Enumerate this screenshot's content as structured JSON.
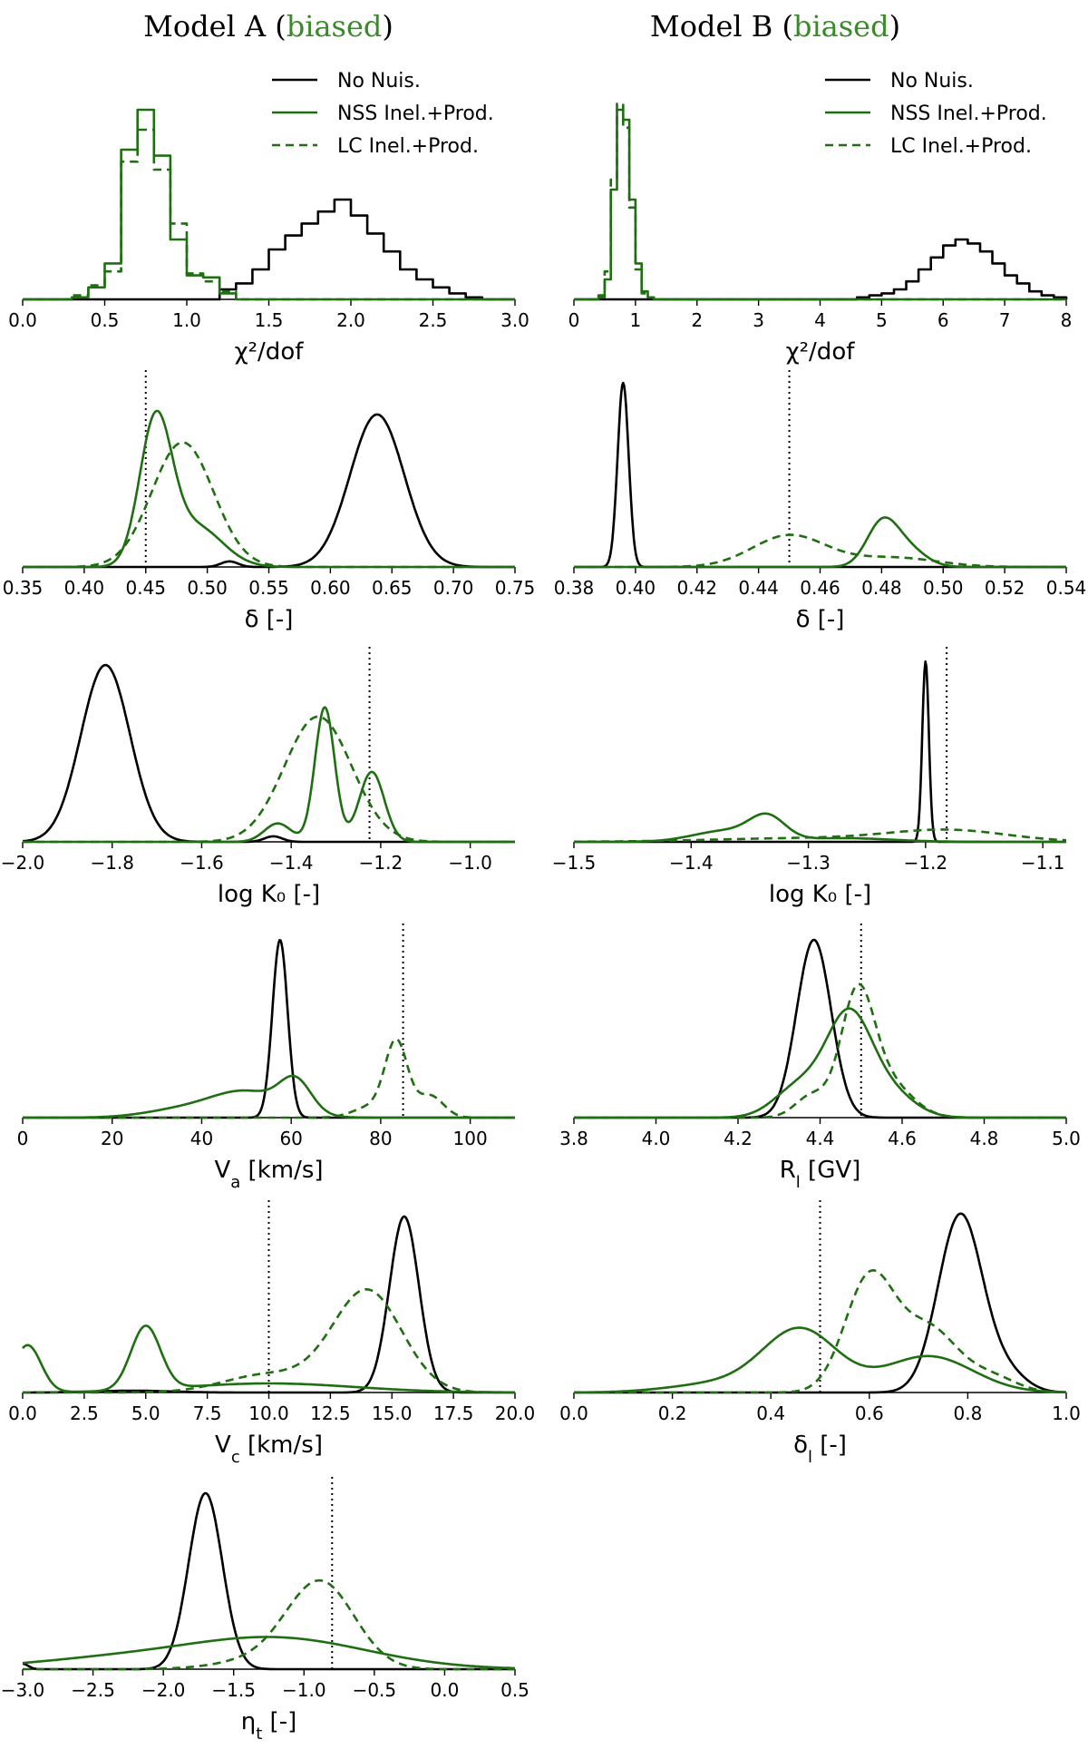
{
  "colors": {
    "black": "#000000",
    "green": "#1f6e12",
    "biased": "#3a8a2a"
  },
  "columns": [
    {
      "title_prefix": "Model A (",
      "title_colored": "biased",
      "title_suffix": ")"
    },
    {
      "title_prefix": "Model B (",
      "title_colored": "biased",
      "title_suffix": ")"
    }
  ],
  "legend": [
    "No Nuis.",
    "NSS Inel.+Prod.",
    "LC Inel.+Prod."
  ],
  "chart_data": [
    {
      "id": "A-chi2",
      "type": "step-histogram",
      "col": 0,
      "row": 0,
      "xlabel": "χ²/dof",
      "xlim": [
        0,
        3.0
      ],
      "ylim": [
        0,
        1.0
      ],
      "ticks": [
        0,
        0.5,
        1.0,
        1.5,
        2.0,
        2.5,
        3.0
      ],
      "tick_labels": [
        "0.0",
        "0.5",
        "1.0",
        "1.5",
        "2.0",
        "2.5",
        "3.0"
      ],
      "legend": true,
      "series": [
        {
          "name": "No Nuis.",
          "style": "black-solid",
          "bins": [
            1.2,
            1.3,
            1.4,
            1.5,
            1.6,
            1.7,
            1.8,
            1.9,
            2.0,
            2.1,
            2.2,
            2.3,
            2.4,
            2.5,
            2.6,
            2.7,
            2.8
          ],
          "counts": [
            0.05,
            0.08,
            0.15,
            0.25,
            0.32,
            0.38,
            0.44,
            0.5,
            0.42,
            0.33,
            0.24,
            0.15,
            0.1,
            0.06,
            0.03,
            0.01
          ]
        },
        {
          "name": "NSS Inel.+Prod.",
          "style": "green-solid",
          "bins": [
            0.3,
            0.4,
            0.5,
            0.6,
            0.7,
            0.8,
            0.9,
            1.0,
            1.1,
            1.2,
            1.3
          ],
          "counts": [
            0.01,
            0.06,
            0.18,
            0.75,
            0.95,
            0.72,
            0.3,
            0.12,
            0.11,
            0.03
          ]
        },
        {
          "name": "LC Inel.+Prod.",
          "style": "green-dashed",
          "bins": [
            0.3,
            0.4,
            0.5,
            0.6,
            0.7,
            0.8,
            0.9,
            1.0,
            1.1,
            1.2,
            1.3
          ],
          "counts": [
            0.02,
            0.07,
            0.14,
            0.69,
            0.85,
            0.65,
            0.38,
            0.13,
            0.09,
            0.04
          ]
        }
      ]
    },
    {
      "id": "B-chi2",
      "type": "step-histogram",
      "col": 1,
      "row": 0,
      "xlabel": "χ²/dof",
      "xlim": [
        0,
        8
      ],
      "ylim": [
        0,
        1.0
      ],
      "ticks": [
        0,
        1,
        2,
        3,
        4,
        5,
        6,
        7,
        8
      ],
      "tick_labels": [
        "0",
        "1",
        "2",
        "3",
        "4",
        "5",
        "6",
        "7",
        "8"
      ],
      "legend": true,
      "series": [
        {
          "name": "No Nuis.",
          "style": "black-solid",
          "bins": [
            4.6,
            4.8,
            5.0,
            5.2,
            5.4,
            5.6,
            5.8,
            6.0,
            6.2,
            6.4,
            6.6,
            6.8,
            7.0,
            7.2,
            7.4,
            7.6,
            7.8,
            8.0
          ],
          "counts": [
            0.01,
            0.02,
            0.03,
            0.05,
            0.09,
            0.15,
            0.21,
            0.27,
            0.3,
            0.28,
            0.24,
            0.18,
            0.12,
            0.08,
            0.04,
            0.02,
            0.01
          ]
        },
        {
          "name": "NSS Inel.+Prod.",
          "style": "green-solid",
          "bins": [
            0.4,
            0.5,
            0.6,
            0.7,
            0.8,
            0.9,
            1.0,
            1.1,
            1.2,
            1.3
          ],
          "counts": [
            0.01,
            0.1,
            0.55,
            0.95,
            0.9,
            0.5,
            0.18,
            0.04,
            0.01
          ]
        },
        {
          "name": "LC Inel.+Prod.",
          "style": "green-dashed",
          "bins": [
            0.4,
            0.5,
            0.6,
            0.7,
            0.8,
            0.9,
            1.0,
            1.1,
            1.2,
            1.3
          ],
          "counts": [
            0.02,
            0.14,
            0.6,
            0.98,
            0.86,
            0.46,
            0.15,
            0.03,
            0.01
          ]
        }
      ]
    },
    {
      "id": "A-delta",
      "type": "kde",
      "col": 0,
      "row": 1,
      "xlabel": "δ [-]",
      "xlim": [
        0.35,
        0.75
      ],
      "ylim": [
        0,
        1.0
      ],
      "ticks": [
        0.35,
        0.4,
        0.45,
        0.5,
        0.55,
        0.6,
        0.65,
        0.7,
        0.75
      ],
      "tick_labels": [
        "0.35",
        "0.40",
        "0.45",
        "0.50",
        "0.55",
        "0.60",
        "0.65",
        "0.70",
        "0.75"
      ],
      "truth": 0.45,
      "series": [
        {
          "name": "No Nuis.",
          "style": "black-solid",
          "peaks": [
            [
              0.638,
              0.022,
              0.82
            ],
            [
              0.518,
              0.007,
              0.03
            ]
          ]
        },
        {
          "name": "NSS Inel.+Prod.",
          "style": "green-solid",
          "peaks": [
            [
              0.458,
              0.013,
              0.76
            ],
            [
              0.49,
              0.022,
              0.22
            ]
          ]
        },
        {
          "name": "LC Inel.+Prod.",
          "style": "green-dashed",
          "peaks": [
            [
              0.48,
              0.025,
              0.67
            ]
          ]
        }
      ]
    },
    {
      "id": "B-delta",
      "type": "kde",
      "col": 1,
      "row": 1,
      "xlabel": "δ [-]",
      "xlim": [
        0.38,
        0.54
      ],
      "ylim": [
        0,
        1.0
      ],
      "ticks": [
        0.38,
        0.4,
        0.42,
        0.44,
        0.46,
        0.48,
        0.5,
        0.52,
        0.54
      ],
      "tick_labels": [
        "0.38",
        "0.40",
        "0.42",
        "0.44",
        "0.46",
        "0.48",
        "0.50",
        "0.52",
        "0.54"
      ],
      "truth": 0.45,
      "series": [
        {
          "name": "No Nuis.",
          "style": "black-solid",
          "peaks": [
            [
              0.396,
              0.0018,
              0.99
            ]
          ]
        },
        {
          "name": "NSS Inel.+Prod.",
          "style": "green-solid",
          "peaks": [
            [
              0.48,
              0.005,
              0.22
            ],
            [
              0.488,
              0.006,
              0.1
            ]
          ]
        },
        {
          "name": "LC Inel.+Prod.",
          "style": "green-dashed",
          "peaks": [
            [
              0.45,
              0.012,
              0.17
            ],
            [
              0.484,
              0.014,
              0.05
            ]
          ]
        }
      ]
    },
    {
      "id": "A-logK0",
      "type": "kde",
      "col": 0,
      "row": 2,
      "xlabel": "log K₀ [-]",
      "xlim": [
        -2.0,
        -0.9
      ],
      "ylim": [
        0,
        1.0
      ],
      "ticks": [
        -2.0,
        -1.8,
        -1.6,
        -1.4,
        -1.2,
        -1.0
      ],
      "tick_labels": [
        "−2.0",
        "−1.8",
        "−1.6",
        "−1.4",
        "−1.2",
        "−1.0"
      ],
      "truth": -1.225,
      "series": [
        {
          "name": "No Nuis.",
          "style": "black-solid",
          "peaks": [
            [
              -1.815,
              0.055,
              0.96
            ],
            [
              -1.44,
              0.02,
              0.03
            ]
          ]
        },
        {
          "name": "NSS Inel.+Prod.",
          "style": "green-solid",
          "peaks": [
            [
              -1.325,
              0.022,
              0.73
            ],
            [
              -1.22,
              0.028,
              0.38
            ],
            [
              -1.43,
              0.03,
              0.1
            ]
          ]
        },
        {
          "name": "LC Inel.+Prod.",
          "style": "green-dashed",
          "peaks": [
            [
              -1.34,
              0.075,
              0.68
            ]
          ]
        }
      ]
    },
    {
      "id": "B-logK0",
      "type": "kde",
      "col": 1,
      "row": 2,
      "xlabel": "log K₀ [-]",
      "xlim": [
        -1.5,
        -1.08
      ],
      "ylim": [
        0,
        1.0
      ],
      "ticks": [
        -1.5,
        -1.4,
        -1.3,
        -1.2,
        -1.1
      ],
      "tick_labels": [
        "−1.5",
        "−1.4",
        "−1.3",
        "−1.2",
        "−1.1"
      ],
      "truth": -1.182,
      "series": [
        {
          "name": "No Nuis.",
          "style": "black-solid",
          "peaks": [
            [
              -1.2,
              0.0028,
              0.98
            ]
          ]
        },
        {
          "name": "NSS Inel.+Prod.",
          "style": "green-solid",
          "peaks": [
            [
              -1.335,
              0.015,
              0.12
            ],
            [
              -1.37,
              0.028,
              0.06
            ],
            [
              -1.27,
              0.04,
              0.02
            ]
          ]
        },
        {
          "name": "LC Inel.+Prod.",
          "style": "green-dashed",
          "peaks": [
            [
              -1.18,
              0.05,
              0.06
            ],
            [
              -1.3,
              0.08,
              0.02
            ]
          ]
        }
      ]
    },
    {
      "id": "A-Va",
      "type": "kde",
      "col": 0,
      "row": 3,
      "xlabel": "V_a [km/s]",
      "xlim": [
        0,
        110
      ],
      "ylim": [
        0,
        1.0
      ],
      "ticks": [
        0,
        20,
        40,
        60,
        80,
        100
      ],
      "tick_labels": [
        "0",
        "20",
        "40",
        "60",
        "80",
        "100"
      ],
      "truth": 85,
      "series": [
        {
          "name": "No Nuis.",
          "style": "black-solid",
          "peaks": [
            [
              57.5,
              1.7,
              0.97
            ]
          ]
        },
        {
          "name": "NSS Inel.+Prod.",
          "style": "green-solid",
          "peaks": [
            [
              61,
              3.5,
              0.17
            ],
            [
              50,
              8,
              0.14
            ],
            [
              35,
              8,
              0.04
            ]
          ]
        },
        {
          "name": "LC Inel.+Prod.",
          "style": "green-dashed",
          "peaks": [
            [
              83.5,
              2.5,
              0.4
            ],
            [
              91,
              3,
              0.12
            ],
            [
              78,
              4,
              0.06
            ]
          ]
        }
      ]
    },
    {
      "id": "B-Rl",
      "type": "kde",
      "col": 1,
      "row": 3,
      "xlabel": "R_l [GV]",
      "xlim": [
        3.8,
        5.0
      ],
      "ylim": [
        0,
        1.0
      ],
      "ticks": [
        3.8,
        4.0,
        4.2,
        4.4,
        4.6,
        4.8,
        5.0
      ],
      "tick_labels": [
        "3.8",
        "4.0",
        "4.2",
        "4.4",
        "4.6",
        "4.8",
        "5.0"
      ],
      "truth": 4.5,
      "series": [
        {
          "name": "No Nuis.",
          "style": "black-solid",
          "peaks": [
            [
              4.385,
              0.042,
              0.97
            ]
          ]
        },
        {
          "name": "NSS Inel.+Prod.",
          "style": "green-solid",
          "peaks": [
            [
              4.47,
              0.055,
              0.54
            ],
            [
              4.35,
              0.06,
              0.17
            ],
            [
              4.57,
              0.06,
              0.13
            ]
          ]
        },
        {
          "name": "LC Inel.+Prod.",
          "style": "green-dashed",
          "peaks": [
            [
              4.49,
              0.04,
              0.62
            ],
            [
              4.56,
              0.06,
              0.2
            ],
            [
              4.38,
              0.04,
              0.12
            ]
          ]
        }
      ]
    },
    {
      "id": "A-Vc",
      "type": "kde",
      "col": 0,
      "row": 4,
      "xlabel": "V_c [km/s]",
      "xlim": [
        0,
        20
      ],
      "ylim": [
        0,
        1.0
      ],
      "ticks": [
        0,
        2.5,
        5,
        7.5,
        10,
        12.5,
        15,
        17.5,
        20
      ],
      "tick_labels": [
        "0.0",
        "2.5",
        "5.0",
        "7.5",
        "10.0",
        "12.5",
        "15.0",
        "17.5",
        "20.0"
      ],
      "truth": 10,
      "series": [
        {
          "name": "No Nuis.",
          "style": "black-solid",
          "peaks": [
            [
              15.5,
              0.6,
              0.97
            ],
            [
              4.5,
              1.5,
              0.01
            ]
          ]
        },
        {
          "name": "NSS Inel.+Prod.",
          "style": "green-solid",
          "peaks": [
            [
              0.2,
              0.55,
              0.26
            ],
            [
              5.0,
              0.6,
              0.35
            ],
            [
              10,
              3.5,
              0.05
            ]
          ]
        },
        {
          "name": "LC Inel.+Prod.",
          "style": "green-dashed",
          "peaks": [
            [
              14,
              1.4,
              0.56
            ],
            [
              10,
              1.8,
              0.1
            ]
          ]
        }
      ]
    },
    {
      "id": "B-deltal",
      "type": "kde",
      "col": 1,
      "row": 4,
      "xlabel": "δ_l [-]",
      "xlim": [
        0.0,
        1.0
      ],
      "ylim": [
        0,
        1.0
      ],
      "ticks": [
        0.0,
        0.2,
        0.4,
        0.6,
        0.8,
        1.0
      ],
      "tick_labels": [
        "0.0",
        "0.2",
        "0.4",
        "0.6",
        "0.8",
        "1.0"
      ],
      "truth": 0.5,
      "series": [
        {
          "name": "No Nuis.",
          "style": "black-solid",
          "peaks": [
            [
              0.785,
              0.045,
              0.98
            ],
            [
              0.88,
              0.04,
              0.1
            ]
          ]
        },
        {
          "name": "NSS Inel.+Prod.",
          "style": "green-solid",
          "peaks": [
            [
              0.46,
              0.075,
              0.34
            ],
            [
              0.72,
              0.09,
              0.2
            ],
            [
              0.3,
              0.1,
              0.05
            ]
          ]
        },
        {
          "name": "LC Inel.+Prod.",
          "style": "green-dashed",
          "peaks": [
            [
              0.6,
              0.05,
              0.62
            ],
            [
              0.72,
              0.06,
              0.35
            ],
            [
              0.85,
              0.05,
              0.08
            ]
          ]
        }
      ]
    },
    {
      "id": "A-etat",
      "type": "kde",
      "col": 0,
      "row": 5,
      "xlabel": "η_t [-]",
      "xlim": [
        -3.0,
        0.5
      ],
      "ylim": [
        0,
        1.0
      ],
      "ticks": [
        -3.0,
        -2.5,
        -2.0,
        -1.5,
        -1.0,
        -0.5,
        0.0,
        0.5
      ],
      "tick_labels": [
        "−3.0",
        "−2.5",
        "−2.0",
        "−1.5",
        "−1.0",
        "−0.5",
        "0.0",
        "0.5"
      ],
      "truth": -0.8,
      "series": [
        {
          "name": "No Nuis.",
          "style": "black-solid",
          "peaks": [
            [
              -1.7,
              0.12,
              0.97
            ],
            [
              -3.0,
              0.04,
              0.03
            ]
          ]
        },
        {
          "name": "NSS Inel.+Prod.",
          "style": "green-solid",
          "peaks": [
            [
              -1.2,
              0.65,
              0.17
            ],
            [
              -2.4,
              0.6,
              0.05
            ]
          ]
        },
        {
          "name": "LC Inel.+Prod.",
          "style": "green-dashed",
          "peaks": [
            [
              -0.88,
              0.24,
              0.47
            ],
            [
              -1.3,
              0.3,
              0.05
            ]
          ]
        }
      ]
    }
  ]
}
